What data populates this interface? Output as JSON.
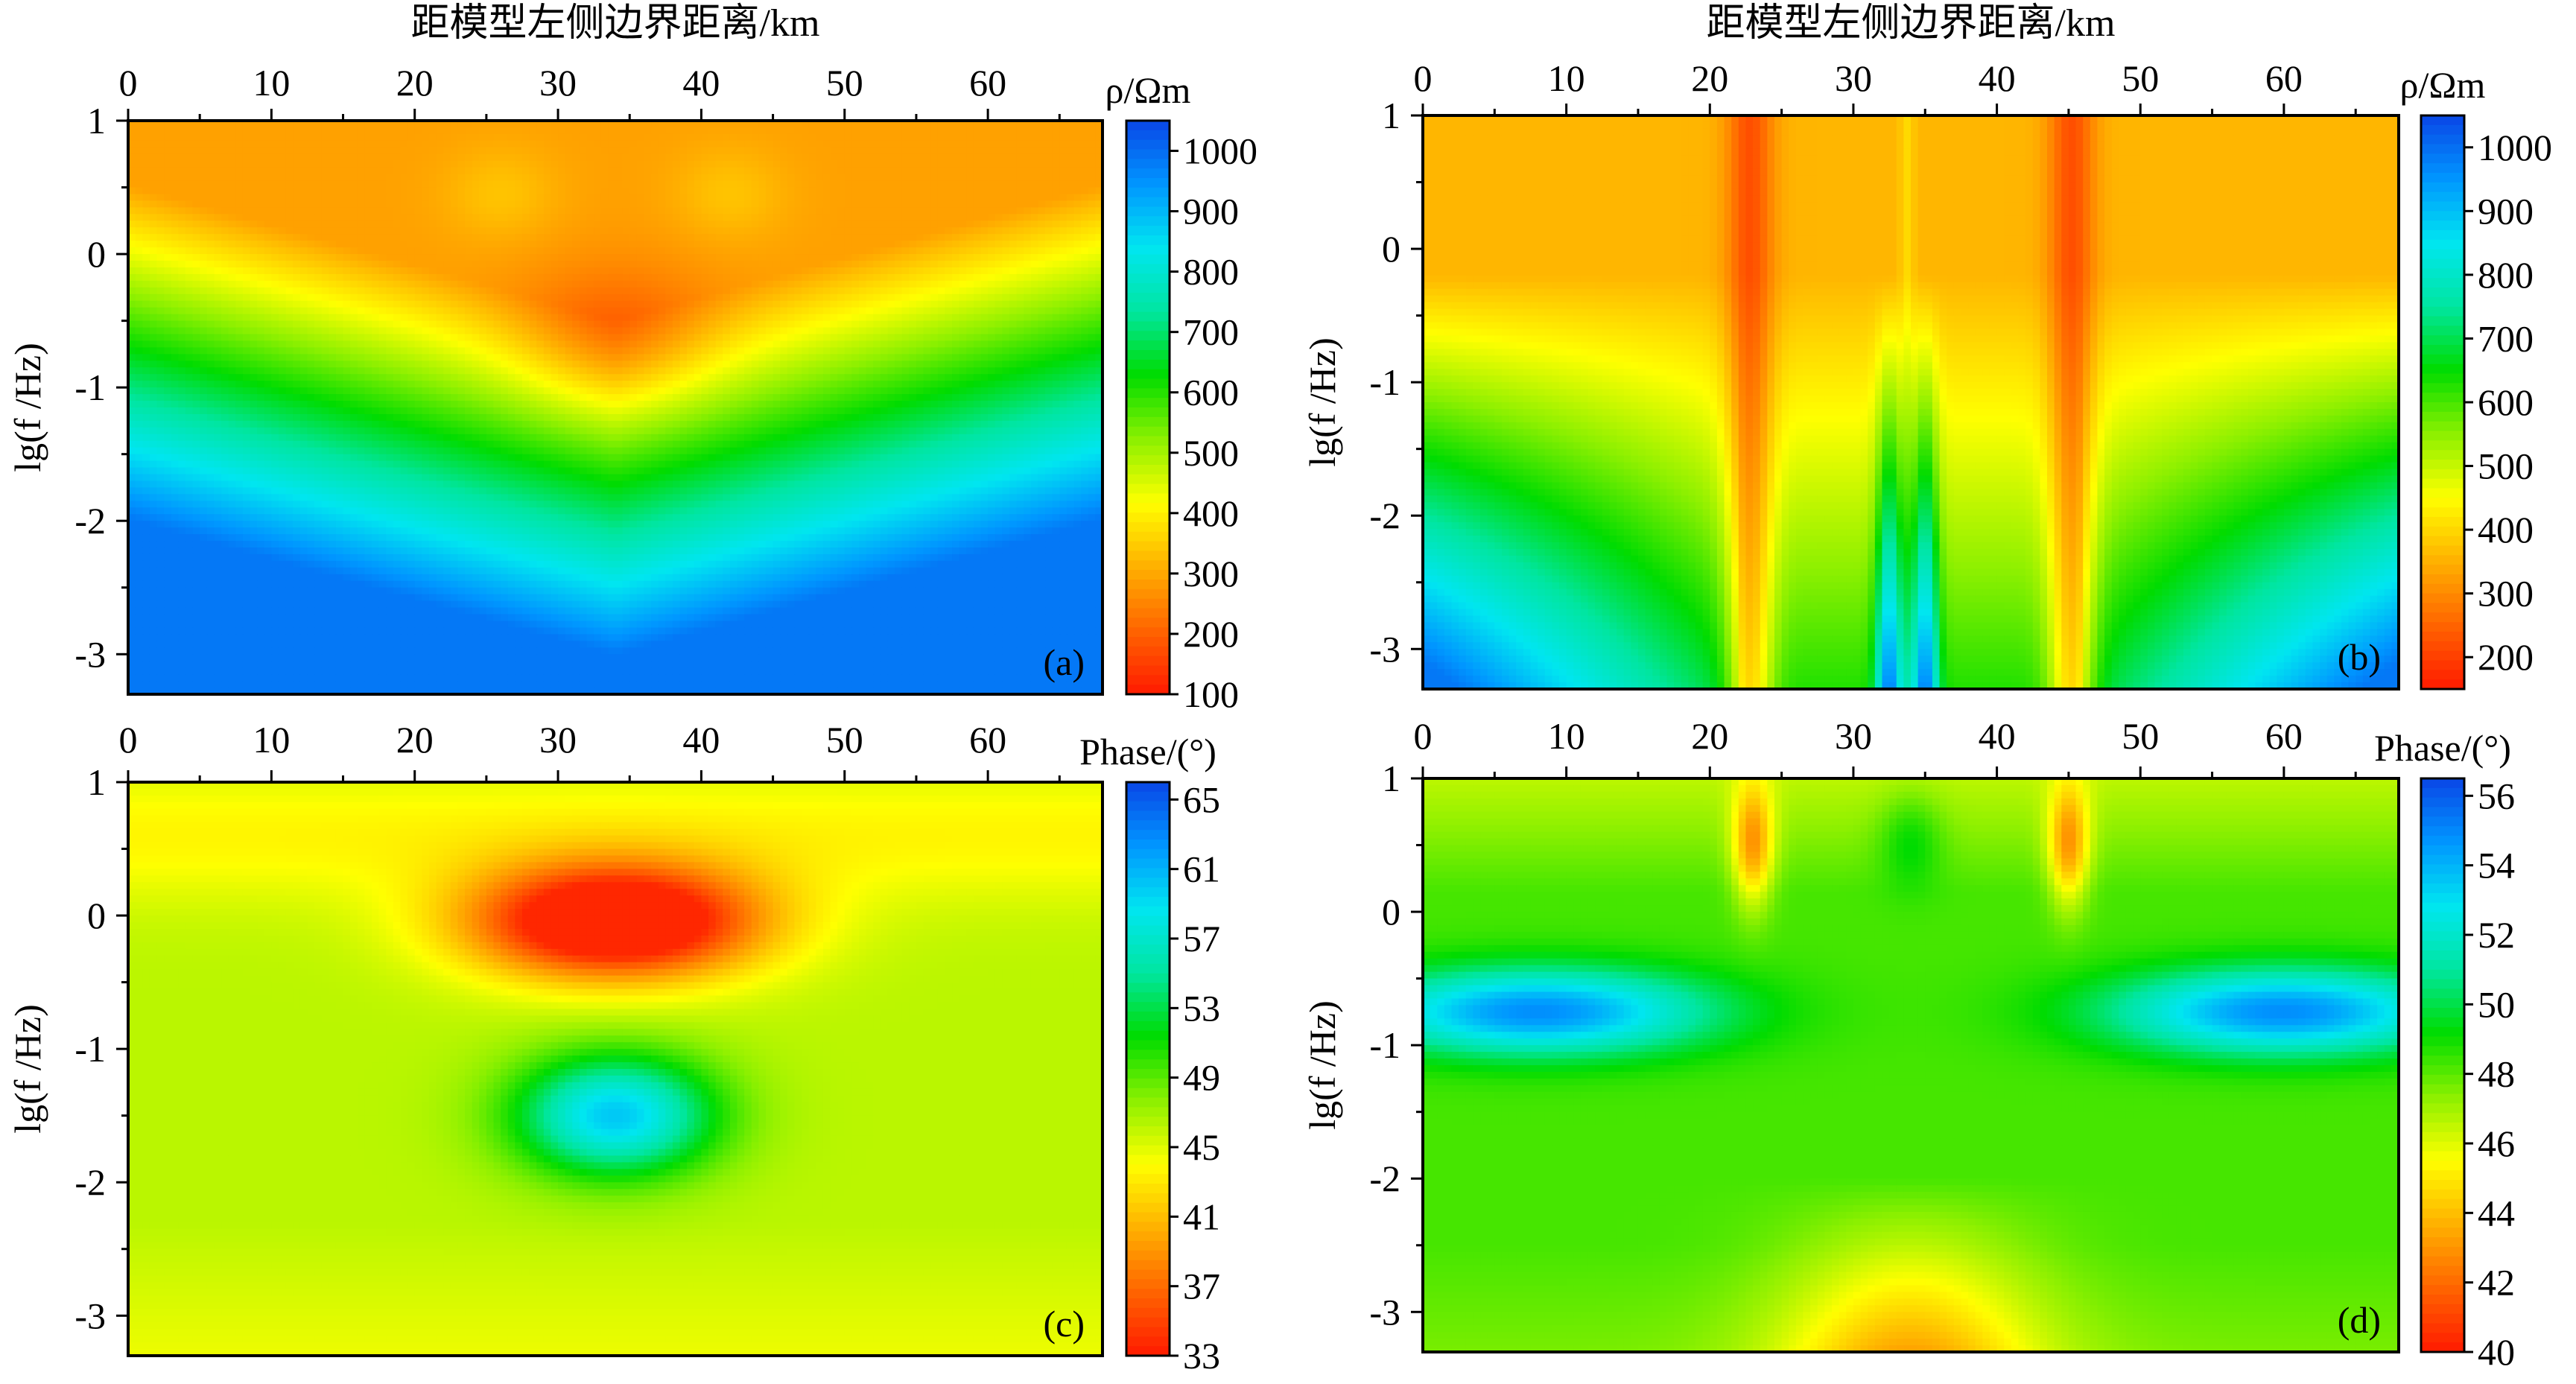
{
  "chart_data": [
    {
      "type": "heatmap",
      "panel_label": "(a)",
      "title": "距模型左侧边界距离/km",
      "xlabel": "",
      "ylabel": "lg(f /Hz)",
      "xlim": [
        0,
        68
      ],
      "ylim": [
        -3.3,
        1
      ],
      "x_ticks": [
        "0",
        "10",
        "20",
        "30",
        "40",
        "50",
        "60"
      ],
      "y_ticks": [
        "1",
        "0",
        "-1",
        "-2",
        "-3"
      ],
      "colorbar": {
        "title": "ρ/Ωm",
        "range": [
          100,
          1050
        ],
        "ticks": [
          "1000",
          "900",
          "800",
          "700",
          "600",
          "500",
          "400",
          "300",
          "200",
          "100"
        ]
      }
    },
    {
      "type": "heatmap",
      "panel_label": "(b)",
      "title": "距模型左侧边界距离/km",
      "xlabel": "",
      "ylabel": "lg(f /Hz)",
      "xlim": [
        0,
        68
      ],
      "ylim": [
        -3.3,
        1
      ],
      "x_ticks": [
        "0",
        "10",
        "20",
        "30",
        "40",
        "50",
        "60"
      ],
      "y_ticks": [
        "1",
        "0",
        "-1",
        "-2",
        "-3"
      ],
      "colorbar": {
        "title": "ρ/Ωm",
        "range": [
          150,
          1050
        ],
        "ticks": [
          "1000",
          "900",
          "800",
          "700",
          "600",
          "500",
          "400",
          "300",
          "200"
        ]
      }
    },
    {
      "type": "heatmap",
      "panel_label": "(c)",
      "title": "",
      "xlabel": "",
      "ylabel": "lg(f /Hz)",
      "xlim": [
        0,
        68
      ],
      "ylim": [
        -3.3,
        1
      ],
      "x_ticks": [
        "0",
        "10",
        "20",
        "30",
        "40",
        "50",
        "60"
      ],
      "y_ticks": [
        "1",
        "0",
        "-1",
        "-2",
        "-3"
      ],
      "colorbar": {
        "title": "Phase/(°)",
        "range": [
          33,
          66
        ],
        "ticks": [
          "65",
          "61",
          "57",
          "53",
          "49",
          "45",
          "41",
          "37",
          "33"
        ]
      }
    },
    {
      "type": "heatmap",
      "panel_label": "(d)",
      "title": "",
      "xlabel": "",
      "ylabel": "lg(f /Hz)",
      "xlim": [
        0,
        68
      ],
      "ylim": [
        -3.3,
        1
      ],
      "x_ticks": [
        "0",
        "10",
        "20",
        "30",
        "40",
        "50",
        "60"
      ],
      "y_ticks": [
        "1",
        "0",
        "-1",
        "-2",
        "-3"
      ],
      "colorbar": {
        "title": "Phase/(°)",
        "range": [
          40,
          56.5
        ],
        "ticks": [
          "56",
          "54",
          "52",
          "50",
          "48",
          "46",
          "44",
          "42",
          "40"
        ]
      }
    }
  ],
  "colors": {
    "colormap": [
      "#ff1a00",
      "#ff6400",
      "#ffb000",
      "#ffff00",
      "#8cf000",
      "#00dc00",
      "#00e6a0",
      "#00e6f0",
      "#0096ff",
      "#0a46e6"
    ]
  }
}
